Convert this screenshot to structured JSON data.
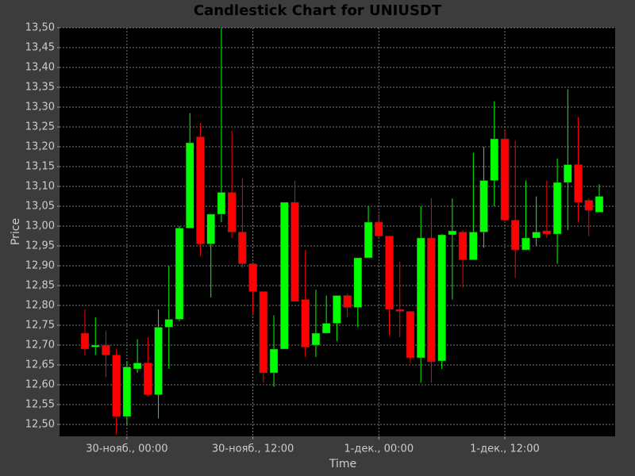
{
  "chart_data": {
    "type": "candlestick",
    "title": "Candlestick Chart for UNIUSDT",
    "x_label": "Time",
    "y_label": "Price",
    "x": [
      "29-нояб., 20:00",
      "29-нояб., 21:00",
      "29-нояб., 22:00",
      "29-нояб., 23:00",
      "30-нояб., 00:00",
      "30-нояб., 01:00",
      "30-нояб., 02:00",
      "30-нояб., 03:00",
      "30-нояб., 04:00",
      "30-нояб., 05:00",
      "30-нояб., 06:00",
      "30-нояб., 07:00",
      "30-нояб., 08:00",
      "30-нояб., 09:00",
      "30-нояб., 10:00",
      "30-нояб., 11:00",
      "30-нояб., 12:00",
      "30-нояб., 13:00",
      "30-нояб., 14:00",
      "30-нояб., 15:00",
      "30-нояб., 16:00",
      "30-нояб., 17:00",
      "30-нояб., 18:00",
      "30-нояб., 19:00",
      "30-нояб., 20:00",
      "30-нояб., 21:00",
      "30-нояб., 22:00",
      "30-нояб., 23:00",
      "1-дек., 00:00",
      "1-дек., 01:00",
      "1-дек., 02:00",
      "1-дек., 03:00",
      "1-дек., 04:00",
      "1-дек., 05:00",
      "1-дек., 06:00",
      "1-дек., 07:00",
      "1-дек., 08:00",
      "1-дек., 09:00",
      "1-дек., 10:00",
      "1-дек., 11:00",
      "1-дек., 12:00",
      "1-дек., 13:00",
      "1-дек., 14:00",
      "1-дек., 15:00",
      "1-дек., 16:00",
      "1-дек., 17:00",
      "1-дек., 18:00",
      "1-дек., 19:00",
      "1-дек., 20:00",
      "1-дек., 21:00"
    ],
    "open": [
      12.73,
      12.695,
      12.7,
      12.675,
      12.52,
      12.64,
      12.655,
      12.575,
      12.745,
      12.765,
      12.995,
      13.225,
      12.955,
      13.03,
      13.085,
      12.985,
      12.905,
      12.835,
      12.63,
      12.69,
      13.06,
      12.815,
      12.7,
      12.73,
      12.755,
      12.825,
      12.795,
      12.92,
      13.01,
      12.975,
      12.79,
      12.785,
      12.668,
      12.97,
      12.66,
      12.978,
      12.985,
      12.915,
      12.985,
      13.115,
      13.22,
      13.015,
      12.94,
      12.97,
      12.988,
      12.98,
      13.11,
      13.155,
      13.065,
      13.035
    ],
    "high": [
      12.79,
      12.77,
      12.735,
      12.69,
      12.66,
      12.715,
      12.72,
      12.79,
      12.9,
      13.0,
      13.285,
      13.26,
      13.03,
      13.5,
      13.24,
      13.12,
      12.905,
      12.835,
      12.775,
      13.06,
      13.115,
      12.94,
      12.84,
      12.825,
      12.825,
      12.83,
      12.92,
      13.05,
      13.03,
      12.975,
      12.91,
      12.785,
      13.05,
      13.07,
      12.98,
      13.07,
      12.99,
      13.185,
      13.2,
      13.315,
      13.24,
      13.215,
      13.115,
      13.075,
      13.115,
      13.17,
      13.345,
      13.275,
      13.07,
      13.105
    ],
    "low": [
      12.674,
      12.675,
      12.62,
      12.475,
      12.5,
      12.63,
      12.57,
      12.515,
      12.64,
      12.76,
      12.995,
      12.925,
      12.82,
      13.01,
      12.97,
      12.895,
      12.78,
      12.605,
      12.595,
      12.69,
      12.81,
      12.67,
      12.67,
      12.73,
      12.71,
      12.77,
      12.745,
      12.92,
      12.97,
      12.725,
      12.72,
      12.655,
      12.605,
      12.605,
      12.64,
      12.815,
      12.845,
      12.915,
      12.945,
      13.05,
      13.01,
      12.87,
      12.94,
      12.95,
      12.97,
      12.905,
      12.99,
      13.01,
      12.975,
      13.035
    ],
    "close": [
      12.69,
      12.7,
      12.675,
      12.52,
      12.645,
      12.655,
      12.575,
      12.745,
      12.765,
      12.995,
      13.21,
      12.955,
      13.03,
      13.085,
      12.985,
      12.905,
      12.835,
      12.63,
      12.69,
      13.06,
      12.81,
      12.695,
      12.73,
      12.755,
      12.825,
      12.795,
      12.92,
      13.01,
      12.975,
      12.79,
      12.785,
      12.668,
      12.97,
      12.658,
      12.978,
      12.988,
      12.915,
      12.985,
      13.115,
      13.22,
      13.015,
      12.94,
      12.97,
      12.985,
      12.98,
      13.11,
      13.155,
      13.06,
      13.04,
      13.075
    ],
    "colors": {
      "up": "#00ff00",
      "down": "#ff0000"
    },
    "ylim": [
      12.47,
      13.5
    ],
    "yticks": [
      {
        "value": 12.5,
        "label": "12,50"
      },
      {
        "value": 12.55,
        "label": "12,55"
      },
      {
        "value": 12.6,
        "label": "12,60"
      },
      {
        "value": 12.65,
        "label": "12,65"
      },
      {
        "value": 12.7,
        "label": "12,70"
      },
      {
        "value": 12.75,
        "label": "12,75"
      },
      {
        "value": 12.8,
        "label": "12,80"
      },
      {
        "value": 12.85,
        "label": "12,85"
      },
      {
        "value": 12.9,
        "label": "12,90"
      },
      {
        "value": 12.95,
        "label": "12,95"
      },
      {
        "value": 13.0,
        "label": "13,00"
      },
      {
        "value": 13.05,
        "label": "13,05"
      },
      {
        "value": 13.1,
        "label": "13,10"
      },
      {
        "value": 13.15,
        "label": "13,15"
      },
      {
        "value": 13.2,
        "label": "13,20"
      },
      {
        "value": 13.25,
        "label": "13,25"
      },
      {
        "value": 13.3,
        "label": "13,30"
      },
      {
        "value": 13.35,
        "label": "13,35"
      },
      {
        "value": 13.4,
        "label": "13,40"
      },
      {
        "value": 13.45,
        "label": "13,45"
      },
      {
        "value": 13.5,
        "label": "13,50"
      }
    ],
    "xticks": [
      "30-нояб., 00:00",
      "30-нояб., 12:00",
      "1-дек., 00:00",
      "1-дек., 12:00"
    ],
    "grid": true
  }
}
